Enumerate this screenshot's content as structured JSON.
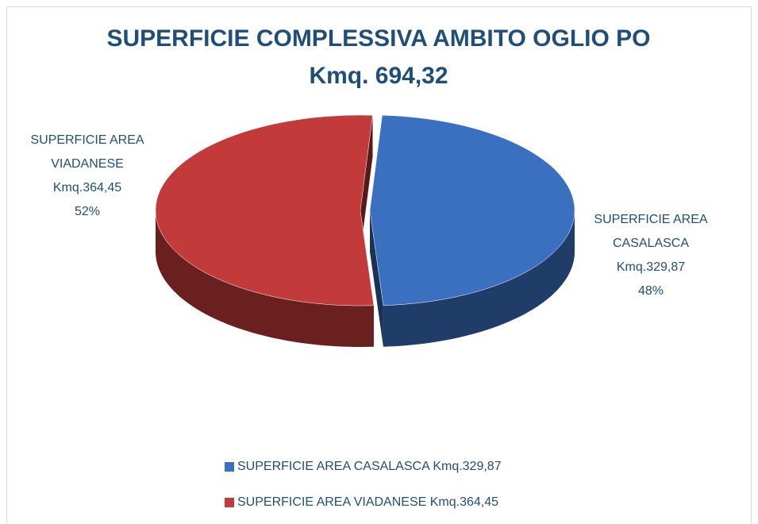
{
  "chart_data": {
    "type": "pie",
    "title": "SUPERFICIE COMPLESSIVA AMBITO OGLIO PO",
    "subtitle": "Kmq. 694,32",
    "categories": [
      "SUPERFICIE AREA CASALASCA Kmq.329,87",
      "SUPERFICIE AREA VIADANESE Kmq.364,45"
    ],
    "values": [
      48,
      52
    ],
    "value_labels": [
      "48%",
      "52%"
    ],
    "colors": [
      "#3b6fc0",
      "#c23a3a"
    ],
    "legend": "bottom"
  }
}
